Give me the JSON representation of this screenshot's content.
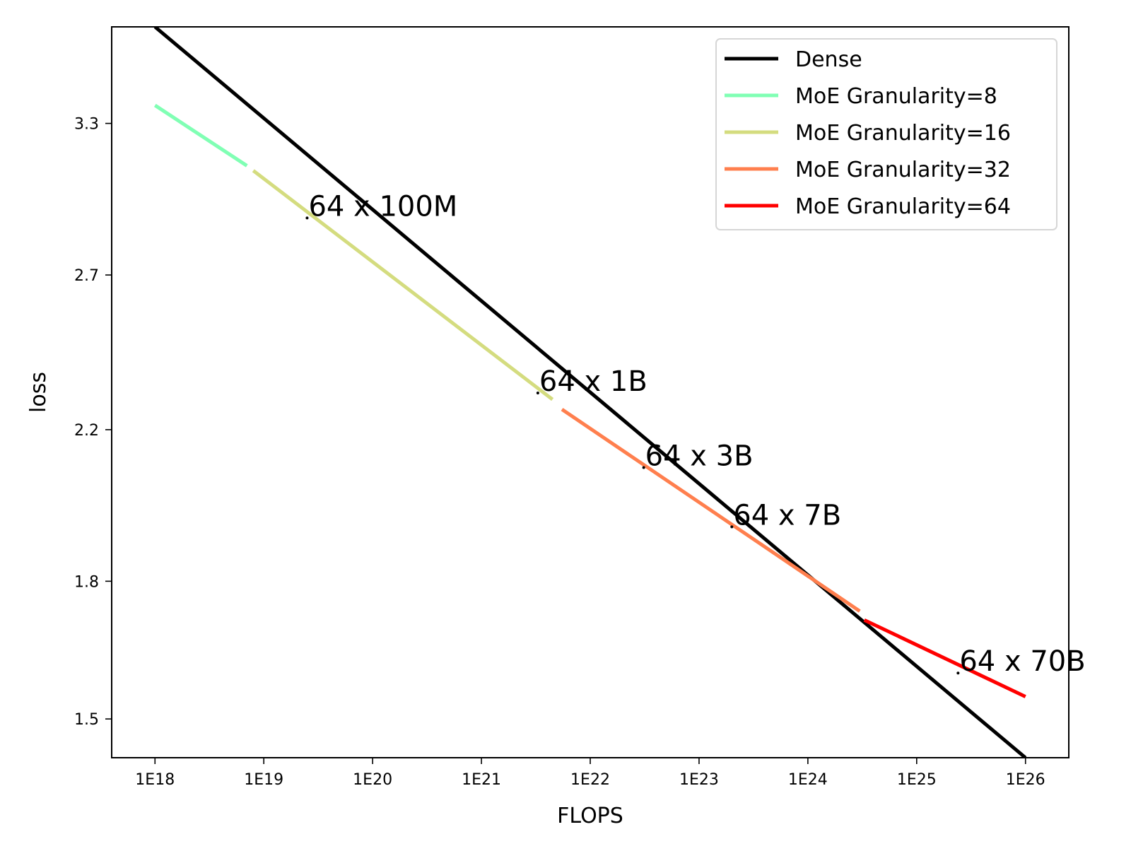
{
  "chart_data": {
    "type": "line",
    "xlabel": "FLOPS",
    "ylabel": "loss",
    "x_scale": "log",
    "y_scale": "log",
    "xlim": [
      4e+17,
      2.5e+26
    ],
    "ylim": [
      1.425,
      3.75
    ],
    "x_ticks": [
      1e+18,
      1e+19,
      1e+20,
      1e+21,
      1e+22,
      1e+23,
      1e+24,
      1e+25,
      1e+26
    ],
    "x_tick_labels": [
      "1E18",
      "1E19",
      "1E20",
      "1E21",
      "1E22",
      "1E23",
      "1E24",
      "1E25",
      "1E26"
    ],
    "y_ticks": [
      1.5,
      1.8,
      2.2,
      2.7,
      3.3
    ],
    "y_tick_labels": [
      "1.5",
      "1.8",
      "2.2",
      "2.7",
      "3.3"
    ],
    "grid": false,
    "legend_position": "top-right",
    "series": [
      {
        "name": "Dense",
        "color": "#000000",
        "points": [
          [
            1e+18,
            3.75
          ],
          [
            1e+26,
            1.425
          ]
        ]
      },
      {
        "name": "MoE Granularity=8",
        "color": "#80ffb4",
        "points": [
          [
            1e+18,
            3.38
          ],
          [
            7e+18,
            3.12
          ]
        ]
      },
      {
        "name": "MoE Granularity=16",
        "color": "#d4dc7f",
        "points": [
          [
            8e+18,
            3.1
          ],
          [
            4.5e+21,
            2.29
          ]
        ]
      },
      {
        "name": "MoE Granularity=32",
        "color": "#ff7f4e",
        "points": [
          [
            5.5e+21,
            2.26
          ],
          [
            3e+24,
            1.73
          ]
        ]
      },
      {
        "name": "MoE Granularity=64",
        "color": "#ff0000",
        "points": [
          [
            3.3e+24,
            1.71
          ],
          [
            1e+26,
            1.545
          ]
        ]
      }
    ],
    "annotations": [
      {
        "text": "64 x 100M",
        "x": 2.5e+19,
        "y": 2.95
      },
      {
        "text": "64 x 1B",
        "x": 3.3e+21,
        "y": 2.34
      },
      {
        "text": "64 x 3B",
        "x": 3.1e+22,
        "y": 2.12
      },
      {
        "text": "64 x 7B",
        "x": 2e+23,
        "y": 1.96
      },
      {
        "text": "64 x 70B",
        "x": 2.4e+25,
        "y": 1.615
      }
    ]
  }
}
